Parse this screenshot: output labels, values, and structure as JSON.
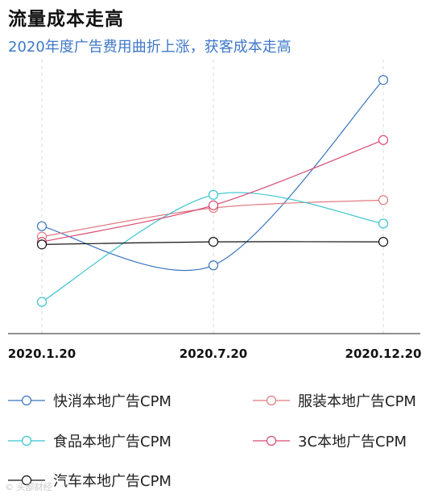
{
  "header": {
    "title": "流量成本走高",
    "subtitle": "2020年度广告费用曲折上涨，获客成本走高"
  },
  "colors": {
    "fmcg": "#3a74c0",
    "apparel": "#e07a80",
    "food": "#35c4cf",
    "electronics": "#d84a72",
    "auto": "#111111"
  },
  "chart_data": {
    "type": "line",
    "categories": [
      "2020.1.20",
      "2020.7.20",
      "2020.12.20"
    ],
    "ylim": [
      0,
      100
    ],
    "grid": "vertical-dashed",
    "legend_position": "bottom",
    "series": [
      {
        "name": "快消本地广告CPM",
        "key": "fmcg",
        "values": [
          43,
          28,
          99
        ]
      },
      {
        "name": "服装本地广告CPM",
        "key": "apparel",
        "values": [
          39,
          50,
          53
        ]
      },
      {
        "name": "食品本地广告CPM",
        "key": "food",
        "values": [
          14,
          55,
          44
        ]
      },
      {
        "name": "3C本地广告CPM",
        "key": "electronics",
        "values": [
          37,
          51,
          76
        ]
      },
      {
        "name": "汽车本地广告CPM",
        "key": "auto",
        "values": [
          36,
          37,
          37
        ]
      }
    ]
  }
}
